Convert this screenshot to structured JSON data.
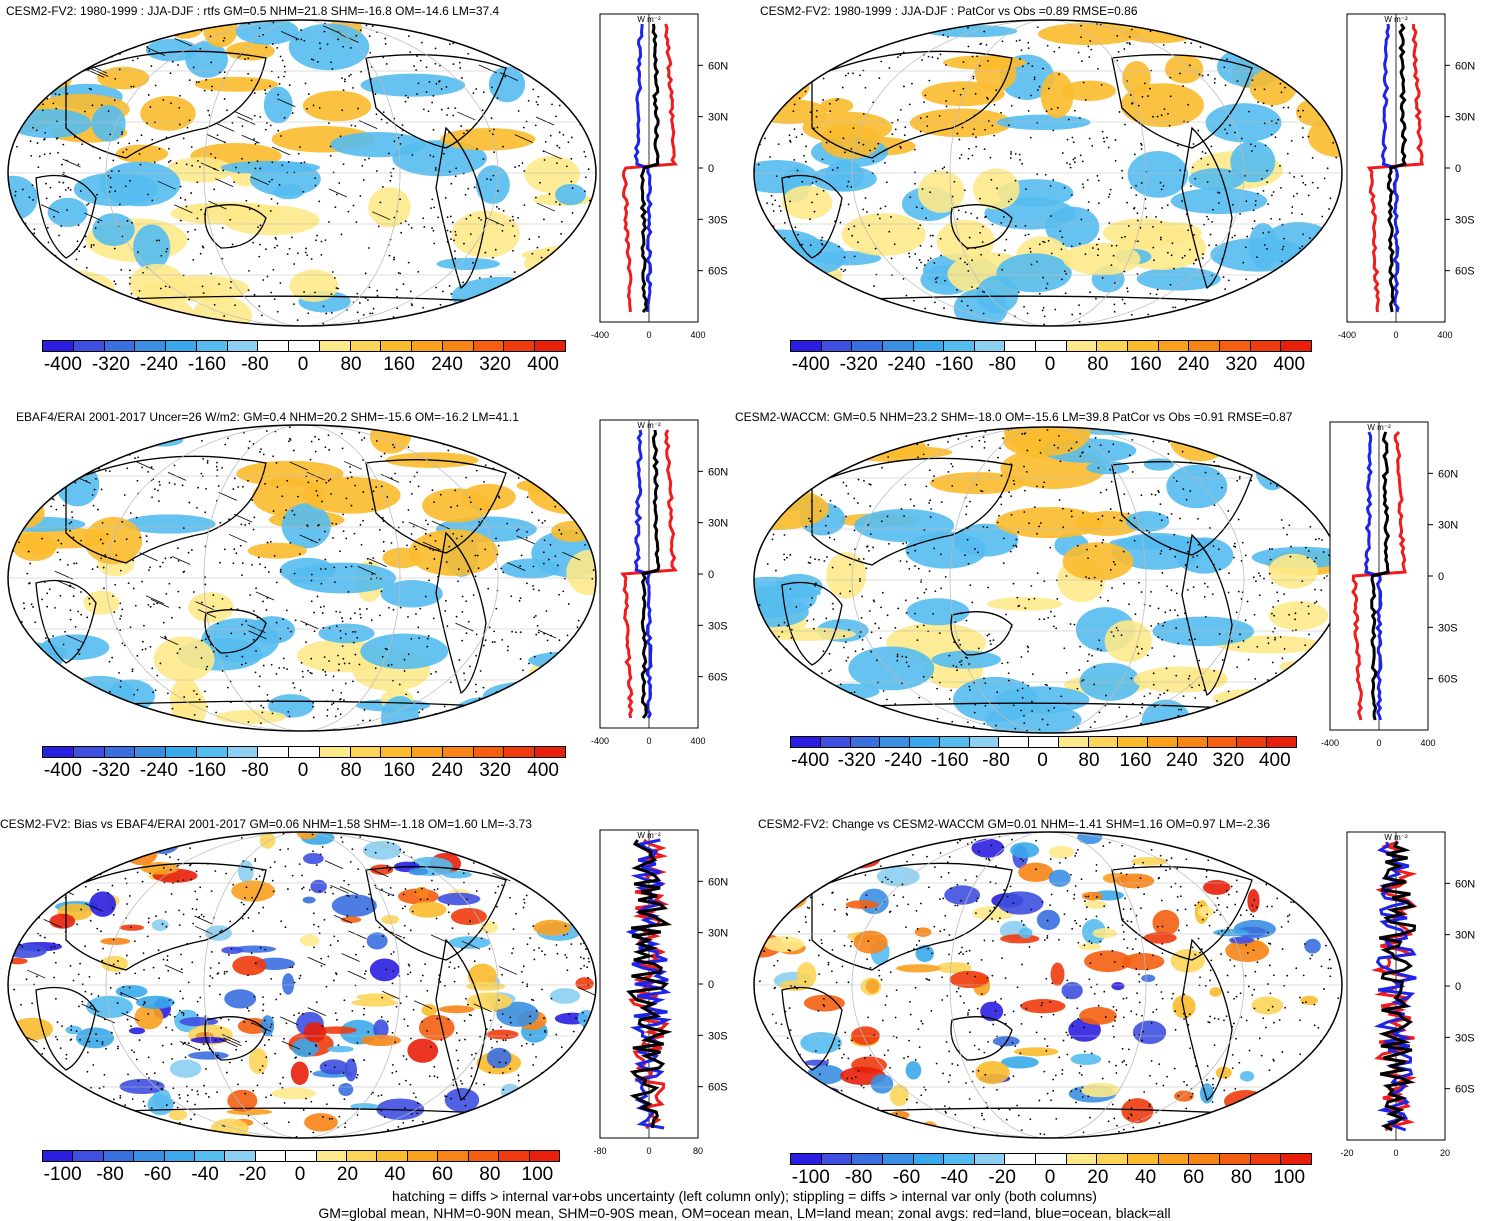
{
  "panels": [
    {
      "title": "CESM2-FV2: 1980-1999 : JJA-DJF : rtfs GM=0.5 NHM=21.8 SHM=-16.8 OM=-14.6 LM=37.4",
      "units": "W m⁻²",
      "xticks": [
        "-400",
        "0",
        "400"
      ],
      "cbar": [
        "-400",
        "-320",
        "-240",
        "-160",
        "-80",
        "0",
        "80",
        "160",
        "240",
        "320",
        "400"
      ]
    },
    {
      "title": "CESM2-FV2: 1980-1999 : JJA-DJF : PatCor vs Obs =0.89 RMSE=0.86",
      "units": "W m⁻²",
      "xticks": [
        "-400",
        "0",
        "400"
      ],
      "cbar": [
        "-400",
        "-320",
        "-240",
        "-160",
        "-80",
        "0",
        "80",
        "160",
        "240",
        "320",
        "400"
      ]
    },
    {
      "title": "EBAF4/ERAI 2001-2017 Uncer=26 W/m2: GM=0.4 NHM=20.2 SHM=-15.6 OM=-16.2 LM=41.1",
      "units": "W m⁻²",
      "xticks": [
        "-400",
        "0",
        "400"
      ],
      "cbar": [
        "-400",
        "-320",
        "-240",
        "-160",
        "-80",
        "0",
        "80",
        "160",
        "240",
        "320",
        "400"
      ]
    },
    {
      "title": "CESM2-WACCM: GM=0.5 NHM=23.2 SHM=-18.0 OM=-15.6 LM=39.8 PatCor vs Obs =0.91 RMSE=0.87",
      "units": "W m⁻²",
      "xticks": [
        "-400",
        "0",
        "400"
      ],
      "cbar": [
        "-400",
        "-320",
        "-240",
        "-160",
        "-80",
        "0",
        "80",
        "160",
        "240",
        "320",
        "400"
      ]
    },
    {
      "title": "CESM2-FV2: Bias vs EBAF4/ERAI 2001-2017 GM=0.06 NHM=1.58 SHM=-1.18 OM=1.60 LM=-3.73",
      "units": "W m⁻²",
      "xticks": [
        "-80",
        "0",
        "80"
      ],
      "cbar": [
        "-100",
        "-80",
        "-60",
        "-40",
        "-20",
        "0",
        "20",
        "40",
        "60",
        "80",
        "100"
      ]
    },
    {
      "title": "CESM2-FV2: Change vs CESM2-WACCM GM=0.01 NHM=-1.41 SHM=1.16 OM=0.97 LM=-2.36",
      "units": "W m⁻²",
      "xticks": [
        "-20",
        "0",
        "20"
      ],
      "cbar": [
        "-100",
        "-80",
        "-60",
        "-40",
        "-20",
        "0",
        "20",
        "40",
        "60",
        "80",
        "100"
      ]
    }
  ],
  "lat_labels": [
    "60N",
    "30N",
    "0",
    "30S",
    "60S"
  ],
  "colors": {
    "palette": [
      "#2a1fe0",
      "#3f4fe0",
      "#3a6fe0",
      "#3b8fe3",
      "#3aa8ea",
      "#55bcf0",
      "#8ccff3",
      "#ffffff",
      "#ffffff",
      "#fde98a",
      "#fcd558",
      "#fbbb2e",
      "#f9a11e",
      "#f78416",
      "#f45f12",
      "#f03b0e",
      "#e81f0a"
    ],
    "land": "#f3b23a",
    "ocean": "#8fc6ee",
    "zonal_land": "#ee1c1c",
    "zonal_ocean": "#1c24e8",
    "zonal_all": "#000000"
  },
  "footer": {
    "line1": "hatching = diffs > internal var+obs uncertainty (left column only); stippling = diffs > internal var only (both columns)",
    "line2": "GM=global mean, NHM=0-90N mean, SHM=0-90S mean, OM=ocean mean, LM=land mean; zonal avgs: red=land, blue=ocean, black=all"
  }
}
